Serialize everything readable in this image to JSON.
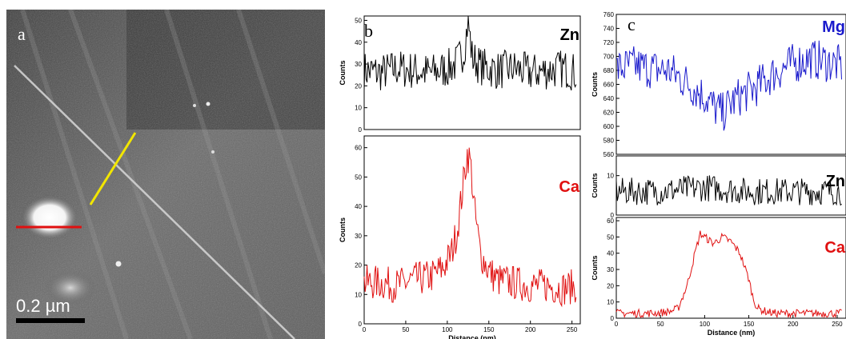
{
  "micrograph": {
    "panel_label": "a",
    "scale_bar_label": "0.2 µm",
    "line_colors": {
      "profile_b": "#f2e600",
      "profile_c": "#e01010"
    }
  },
  "panels": {
    "b": {
      "label": "b"
    },
    "c": {
      "label": "c"
    }
  },
  "chart_data": [
    {
      "panel": "b-top",
      "type": "line",
      "element_label": "Zn",
      "color": "#000000",
      "ylabel": "Counts",
      "xlim": [
        0,
        260
      ],
      "ylim": [
        0,
        52
      ],
      "yticks": [
        "0",
        "10",
        "20",
        "30",
        "40",
        "50"
      ],
      "series": [
        {
          "x": [
            0,
            20,
            40,
            60,
            80,
            100,
            110,
            120,
            125,
            130,
            140,
            160,
            180,
            200,
            220,
            240,
            255
          ],
          "values": [
            27,
            26,
            28,
            27,
            26,
            28,
            30,
            36,
            50,
            33,
            29,
            27,
            28,
            26,
            27,
            28,
            26
          ]
        }
      ]
    },
    {
      "panel": "b-bottom",
      "type": "line",
      "element_label": "Ca",
      "color": "#e01010",
      "xlabel": "Distance (nm)",
      "ylabel": "Counts",
      "xlim": [
        0,
        260
      ],
      "ylim": [
        0,
        64
      ],
      "xticks": [
        "0",
        "50",
        "100",
        "150",
        "200",
        "250"
      ],
      "yticks": [
        "0",
        "10",
        "20",
        "30",
        "40",
        "50",
        "60"
      ],
      "series": [
        {
          "x": [
            0,
            20,
            40,
            60,
            80,
            95,
            105,
            112,
            118,
            124,
            128,
            133,
            140,
            150,
            160,
            180,
            200,
            220,
            240,
            255
          ],
          "values": [
            14,
            14,
            13,
            15,
            16,
            19,
            24,
            32,
            45,
            58,
            55,
            38,
            24,
            18,
            15,
            14,
            13,
            13,
            12,
            13
          ]
        }
      ]
    },
    {
      "panel": "c-top",
      "type": "line",
      "element_label": "Mg",
      "color": "#1a1acc",
      "ylabel": "Counts",
      "xlim": [
        0,
        260
      ],
      "ylim": [
        555,
        760
      ],
      "yticks": [
        "560",
        "580",
        "600",
        "620",
        "640",
        "660",
        "680",
        "700",
        "720",
        "740",
        "760"
      ],
      "series": [
        {
          "x": [
            0,
            20,
            40,
            60,
            80,
            100,
            110,
            120,
            130,
            140,
            160,
            180,
            200,
            220,
            240,
            255
          ],
          "values": [
            680,
            685,
            680,
            678,
            660,
            640,
            625,
            615,
            630,
            640,
            655,
            675,
            688,
            695,
            690,
            685
          ]
        }
      ]
    },
    {
      "panel": "c-middle",
      "type": "line",
      "element_label": "Zn",
      "color": "#000000",
      "ylabel": "Counts",
      "xlim": [
        0,
        260
      ],
      "ylim": [
        0,
        15
      ],
      "yticks": [
        "0",
        "10"
      ],
      "series": [
        {
          "x": [
            0,
            50,
            100,
            150,
            200,
            255
          ],
          "values": [
            6,
            6,
            7,
            6,
            6,
            6
          ]
        }
      ]
    },
    {
      "panel": "c-bottom",
      "type": "line",
      "element_label": "Ca",
      "color": "#e01010",
      "xlabel": "Distance (nm)",
      "ylabel": "Counts",
      "xlim": [
        0,
        260
      ],
      "ylim": [
        0,
        62
      ],
      "xticks": [
        "0",
        "50",
        "100",
        "150",
        "200",
        "250"
      ],
      "yticks": [
        "0",
        "10",
        "20",
        "30",
        "40",
        "50",
        "60"
      ],
      "series": [
        {
          "x": [
            0,
            20,
            40,
            60,
            70,
            80,
            90,
            95,
            100,
            110,
            120,
            130,
            140,
            150,
            155,
            160,
            170,
            180,
            200,
            220,
            240,
            255
          ],
          "values": [
            3,
            3,
            3,
            4,
            6,
            20,
            42,
            52,
            50,
            46,
            50,
            47,
            40,
            24,
            12,
            6,
            4,
            3,
            3,
            3,
            3,
            3
          ]
        }
      ]
    }
  ]
}
